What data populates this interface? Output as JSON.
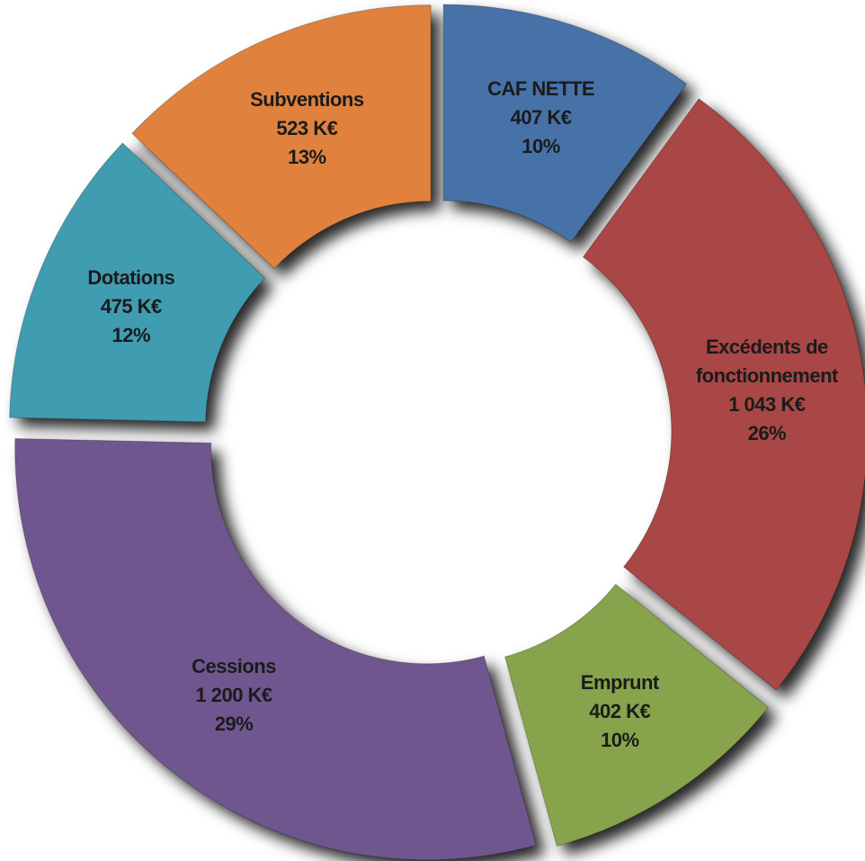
{
  "chart_data": {
    "type": "pie",
    "donut": true,
    "categories": [
      "CAF NETTE",
      "Excédents de fonctionnement",
      "Emprunt",
      "Cessions",
      "Dotations",
      "Subventions"
    ],
    "values": [
      407,
      1043,
      402,
      1200,
      475,
      523
    ],
    "value_labels": [
      "407 K€",
      "1 043 K€",
      "402 K€",
      "1 200 K€",
      "475 K€",
      "523 K€"
    ],
    "percents": [
      10,
      26,
      10,
      29,
      12,
      13
    ],
    "percent_labels": [
      "10%",
      "26%",
      "10%",
      "29%",
      "12%",
      "13%"
    ],
    "colors": [
      "#4672a8",
      "#a84644",
      "#87a34c",
      "#70568e",
      "#3f9cb1",
      "#e0823c"
    ]
  }
}
